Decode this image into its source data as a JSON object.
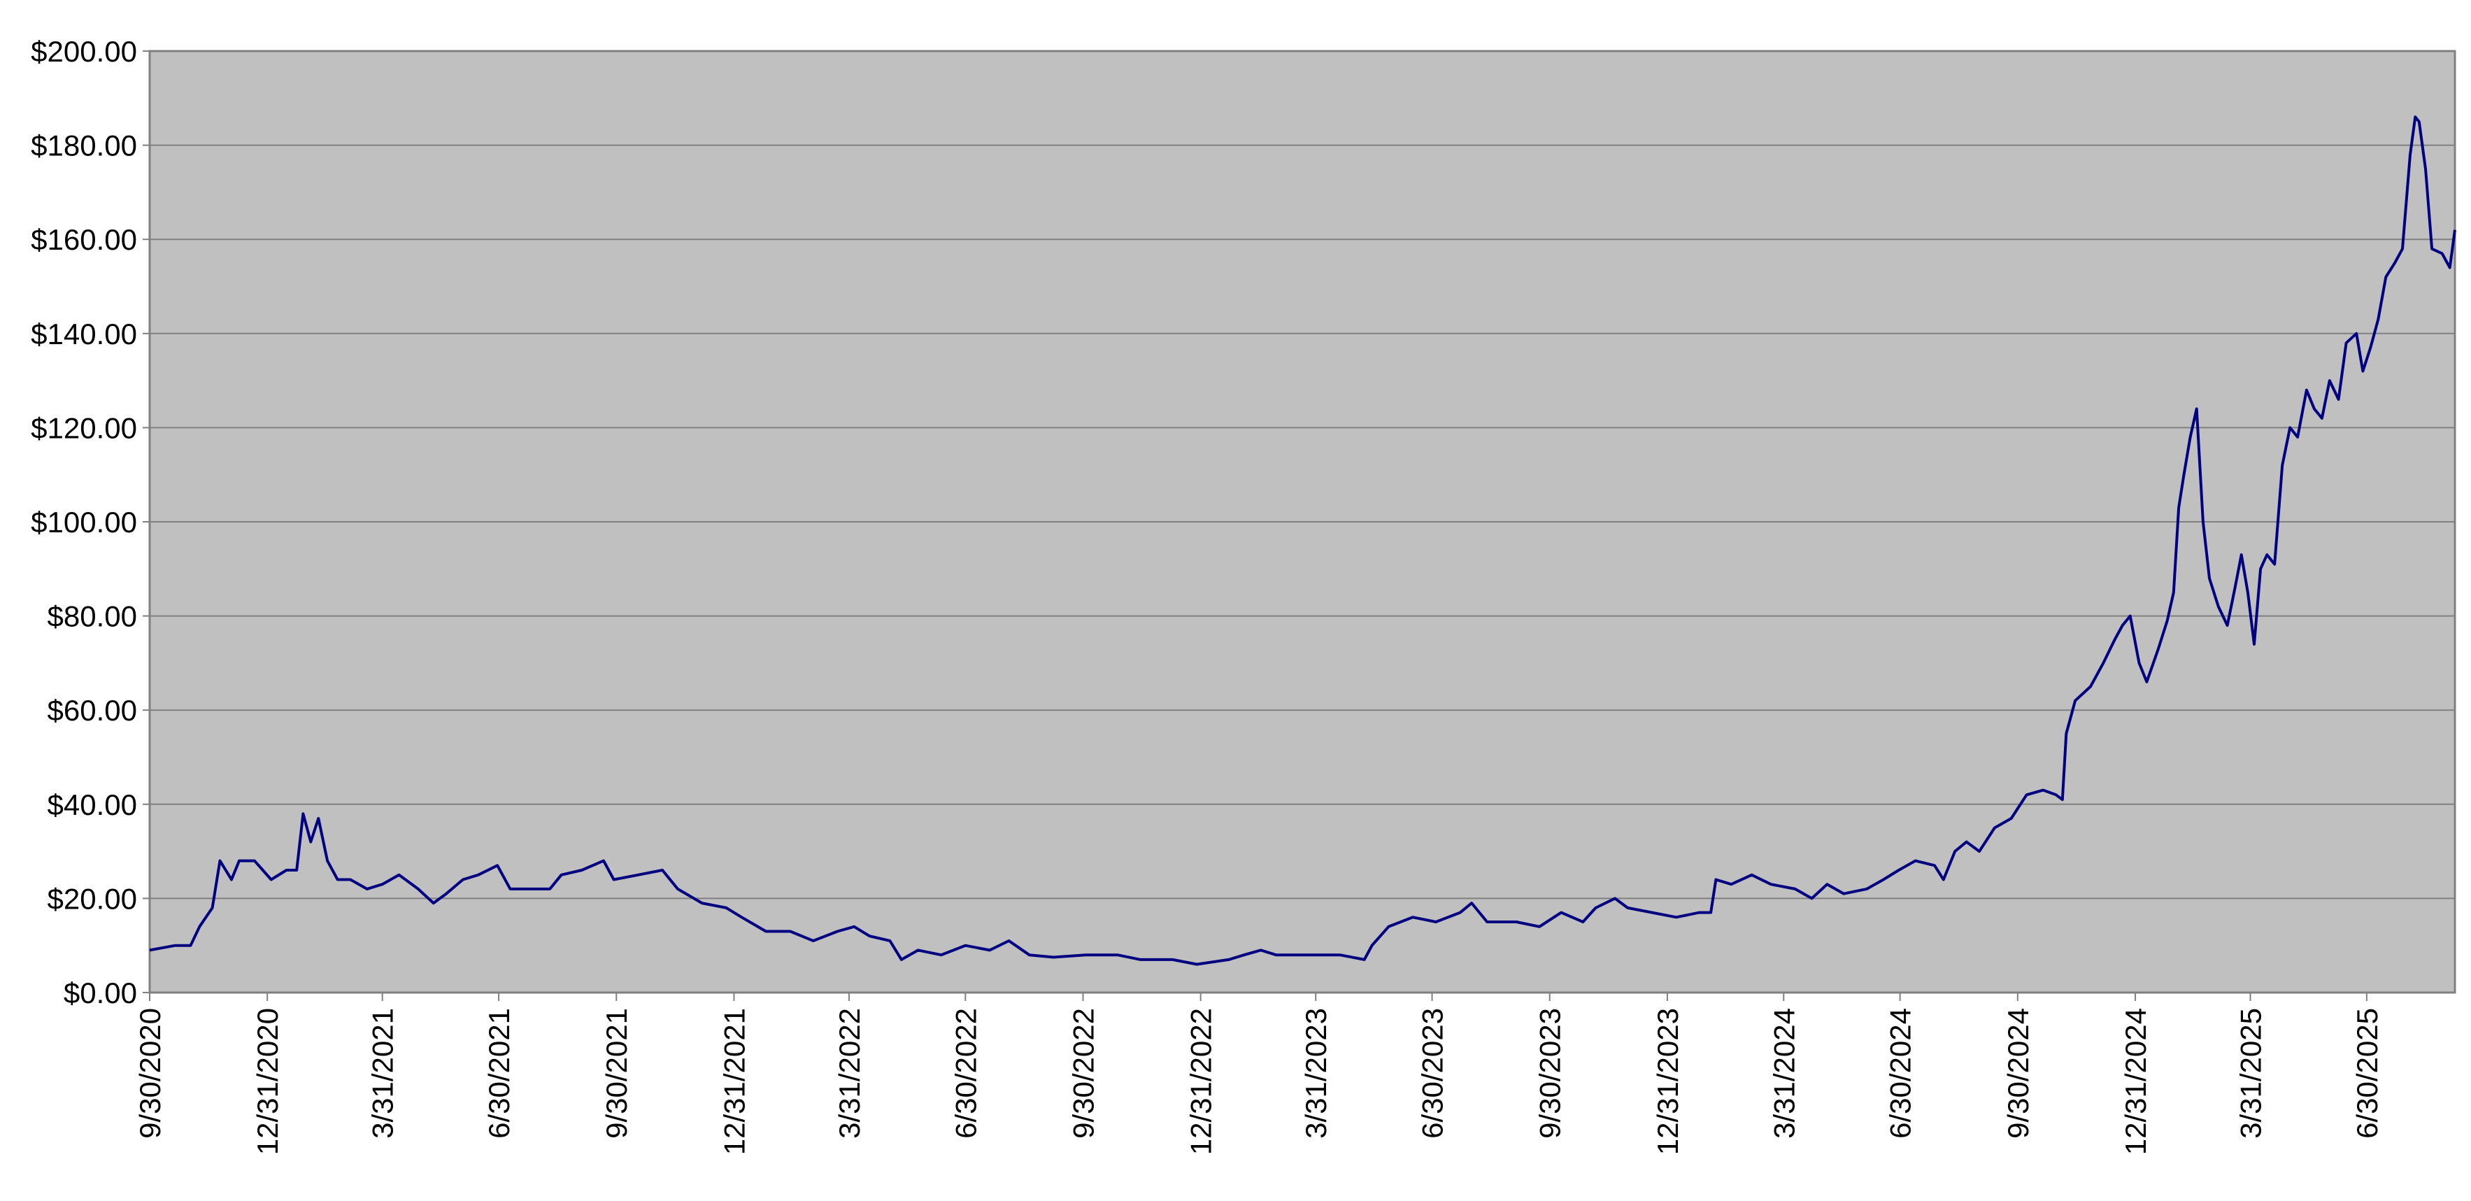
{
  "chart_data": {
    "type": "line",
    "x": [
      "2020-09-30",
      "2020-10-20",
      "2020-11-01",
      "2020-11-08",
      "2020-11-18",
      "2020-11-24",
      "2020-12-03",
      "2020-12-09",
      "2020-12-21",
      "2021-01-03",
      "2021-01-15",
      "2021-01-23",
      "2021-01-28",
      "2021-02-03",
      "2021-02-09",
      "2021-02-16",
      "2021-02-24",
      "2021-03-06",
      "2021-03-19",
      "2021-03-31",
      "2021-04-13",
      "2021-04-28",
      "2021-05-10",
      "2021-05-20",
      "2021-06-02",
      "2021-06-14",
      "2021-06-29",
      "2021-07-09",
      "2021-07-22",
      "2021-08-09",
      "2021-08-18",
      "2021-09-03",
      "2021-09-20",
      "2021-09-28",
      "2021-10-17",
      "2021-11-05",
      "2021-11-17",
      "2021-12-06",
      "2021-12-25",
      "2022-01-06",
      "2022-01-25",
      "2022-02-13",
      "2022-03-03",
      "2022-03-22",
      "2022-04-04",
      "2022-04-16",
      "2022-05-02",
      "2022-05-11",
      "2022-05-24",
      "2022-06-11",
      "2022-06-30",
      "2022-07-19",
      "2022-08-03",
      "2022-08-19",
      "2022-09-07",
      "2022-10-02",
      "2022-10-27",
      "2022-11-14",
      "2022-12-09",
      "2022-12-28",
      "2023-01-22",
      "2023-02-03",
      "2023-02-16",
      "2023-02-28",
      "2023-03-25",
      "2023-04-19",
      "2023-05-08",
      "2023-05-14",
      "2023-05-27",
      "2023-06-15",
      "2023-07-03",
      "2023-07-22",
      "2023-07-31",
      "2023-08-12",
      "2023-09-04",
      "2023-09-22",
      "2023-10-09",
      "2023-10-26",
      "2023-11-05",
      "2023-11-20",
      "2023-11-30",
      "2023-12-19",
      "2024-01-07",
      "2024-01-25",
      "2024-02-03",
      "2024-02-07",
      "2024-02-19",
      "2024-03-06",
      "2024-03-21",
      "2024-04-09",
      "2024-04-22",
      "2024-05-04",
      "2024-05-17",
      "2024-06-04",
      "2024-06-17",
      "2024-06-29",
      "2024-07-12",
      "2024-07-27",
      "2024-08-03",
      "2024-08-12",
      "2024-08-21",
      "2024-08-31",
      "2024-09-12",
      "2024-09-25",
      "2024-10-07",
      "2024-10-20",
      "2024-10-30",
      "2024-11-04",
      "2024-11-07",
      "2024-11-14",
      "2024-11-26",
      "2024-12-06",
      "2024-12-15",
      "2024-12-21",
      "2024-12-27",
      "2025-01-03",
      "2025-01-09",
      "2025-01-18",
      "2025-01-25",
      "2025-01-30",
      "2025-02-03",
      "2025-02-07",
      "2025-02-12",
      "2025-02-17",
      "2025-02-22",
      "2025-02-27",
      "2025-03-06",
      "2025-03-13",
      "2025-03-19",
      "2025-03-24",
      "2025-03-29",
      "2025-04-03",
      "2025-04-08",
      "2025-04-13",
      "2025-04-19",
      "2025-04-25",
      "2025-05-01",
      "2025-05-07",
      "2025-05-14",
      "2025-05-20",
      "2025-05-26",
      "2025-06-01",
      "2025-06-08",
      "2025-06-14",
      "2025-06-22",
      "2025-06-27",
      "2025-07-03",
      "2025-07-09",
      "2025-07-15",
      "2025-07-22",
      "2025-07-28",
      "2025-08-03",
      "2025-08-07",
      "2025-08-10",
      "2025-08-15",
      "2025-08-20",
      "2025-08-28",
      "2025-09-03",
      "2025-09-07"
    ],
    "series": [
      {
        "color": "#000080",
        "values": [
          9,
          10,
          10,
          14,
          18,
          28,
          24,
          28,
          28,
          24,
          26,
          26,
          38,
          32,
          37,
          28,
          24,
          24,
          22,
          23,
          25,
          22,
          19,
          21,
          24,
          25,
          27,
          22,
          22,
          22,
          25,
          26,
          28,
          24,
          25,
          26,
          22,
          19,
          18,
          16,
          13,
          13,
          11,
          13,
          14,
          12,
          11,
          7,
          9,
          8,
          10,
          9,
          11,
          8,
          7.5,
          8,
          8,
          7,
          7,
          6,
          7,
          8,
          9,
          8,
          8,
          8,
          7,
          10,
          14,
          16,
          15,
          17,
          19,
          15,
          15,
          14,
          17,
          15,
          18,
          20,
          18,
          17,
          16,
          17,
          17,
          24,
          23,
          25,
          23,
          22,
          20,
          23,
          21,
          22,
          24,
          26,
          28,
          27,
          24,
          30,
          32,
          30,
          35,
          37,
          42,
          43,
          42,
          41,
          55,
          62,
          65,
          70,
          75,
          78,
          80,
          70,
          66,
          73,
          79,
          85,
          103,
          110,
          118,
          124,
          100,
          88,
          82,
          78,
          86,
          93,
          85,
          74,
          90,
          93,
          91,
          112,
          120,
          118,
          128,
          124,
          122,
          130,
          126,
          138,
          140,
          132,
          137,
          143,
          152,
          155,
          158,
          178,
          186,
          185,
          175,
          158,
          157,
          154,
          162
        ]
      }
    ],
    "xlim": [
      "2020-09-30",
      "2025-09-07"
    ],
    "xticks": [
      {
        "value": "2020-09-30",
        "label": "9/30/2020"
      },
      {
        "value": "2020-12-31",
        "label": "12/31/2020"
      },
      {
        "value": "2021-03-31",
        "label": "3/31/2021"
      },
      {
        "value": "2021-06-30",
        "label": "6/30/2021"
      },
      {
        "value": "2021-09-30",
        "label": "9/30/2021"
      },
      {
        "value": "2021-12-31",
        "label": "12/31/2021"
      },
      {
        "value": "2022-03-31",
        "label": "3/31/2022"
      },
      {
        "value": "2022-06-30",
        "label": "6/30/2022"
      },
      {
        "value": "2022-09-30",
        "label": "9/30/2022"
      },
      {
        "value": "2022-12-31",
        "label": "12/31/2022"
      },
      {
        "value": "2023-03-31",
        "label": "3/31/2023"
      },
      {
        "value": "2023-06-30",
        "label": "6/30/2023"
      },
      {
        "value": "2023-09-30",
        "label": "9/30/2023"
      },
      {
        "value": "2023-12-31",
        "label": "12/31/2023"
      },
      {
        "value": "2024-03-31",
        "label": "3/31/2024"
      },
      {
        "value": "2024-06-30",
        "label": "6/30/2024"
      },
      {
        "value": "2024-09-30",
        "label": "9/30/2024"
      },
      {
        "value": "2024-12-31",
        "label": "12/31/2024"
      },
      {
        "value": "2025-03-31",
        "label": "3/31/2025"
      },
      {
        "value": "2025-06-30",
        "label": "6/30/2025"
      }
    ],
    "ylim": [
      0,
      200
    ],
    "yticks": [
      {
        "value": 0,
        "label": "$0.00"
      },
      {
        "value": 20,
        "label": "$20.00"
      },
      {
        "value": 40,
        "label": "$40.00"
      },
      {
        "value": 60,
        "label": "$60.00"
      },
      {
        "value": 80,
        "label": "$80.00"
      },
      {
        "value": 100,
        "label": "$100.00"
      },
      {
        "value": 120,
        "label": "$120.00"
      },
      {
        "value": 140,
        "label": "$140.00"
      },
      {
        "value": 160,
        "label": "$160.00"
      },
      {
        "value": 180,
        "label": "$180.00"
      },
      {
        "value": 200,
        "label": "$200.00"
      }
    ],
    "grid": true
  }
}
